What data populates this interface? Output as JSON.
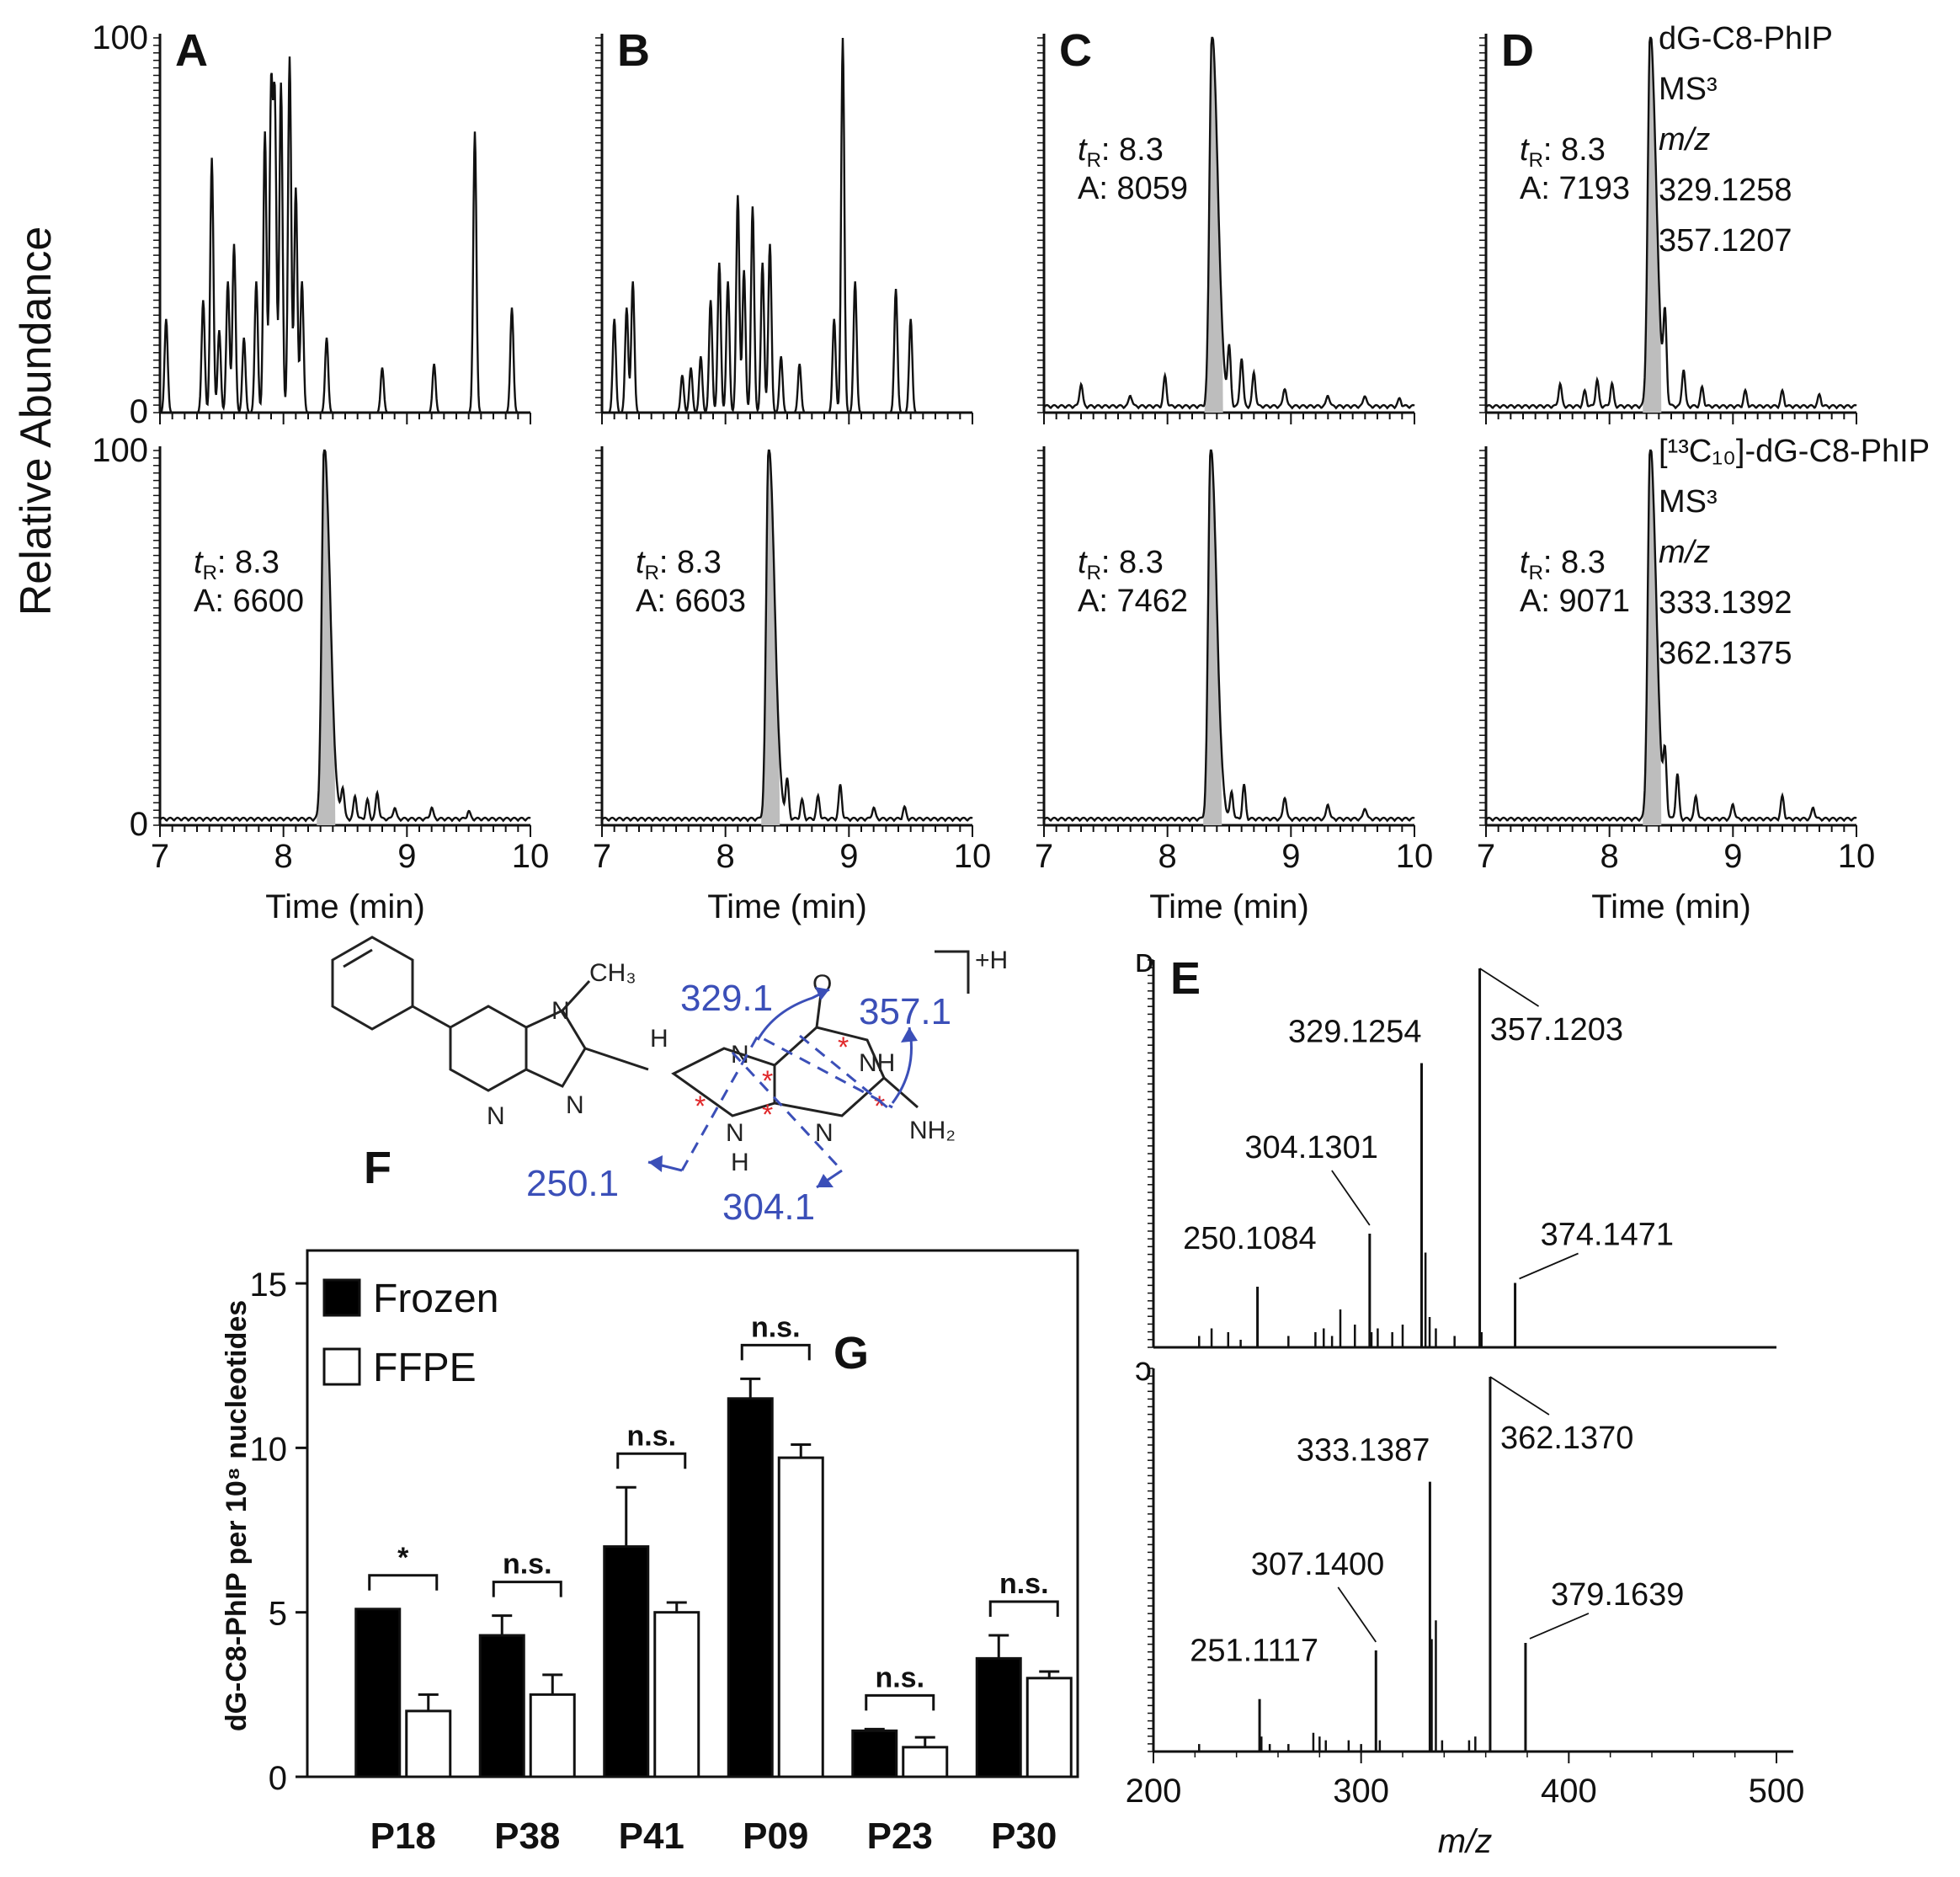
{
  "figure": {
    "y_axis_title": "Relative Abundance",
    "ion_panel_y_ticks": [
      "0",
      "100"
    ]
  },
  "chart_data": [
    {
      "type": "line",
      "id": "chromatograms",
      "x_label": "Time (min)",
      "x_ticks": [
        "7",
        "8",
        "9",
        "10"
      ],
      "xlim": [
        7,
        10
      ],
      "ylim": [
        0,
        100
      ],
      "panels": [
        {
          "letter": "A",
          "top": {
            "title": [],
            "mode": "multi",
            "peaks": [
              [
                7.05,
                25
              ],
              [
                7.35,
                30
              ],
              [
                7.42,
                68
              ],
              [
                7.48,
                22
              ],
              [
                7.55,
                35
              ],
              [
                7.6,
                45
              ],
              [
                7.68,
                20
              ],
              [
                7.78,
                35
              ],
              [
                7.85,
                75
              ],
              [
                7.9,
                85
              ],
              [
                7.93,
                82
              ],
              [
                7.98,
                88
              ],
              [
                8.05,
                95
              ],
              [
                8.1,
                60
              ],
              [
                8.15,
                35
              ],
              [
                8.35,
                20
              ],
              [
                8.8,
                12
              ],
              [
                9.22,
                13
              ],
              [
                9.55,
                75
              ],
              [
                9.85,
                28
              ]
            ]
          },
          "bottom": {
            "tR": "8.3",
            "area": "6600",
            "title": [],
            "mode": "single",
            "peaks": [
              [
                8.33,
                100
              ],
              [
                8.48,
                8
              ],
              [
                8.58,
                6
              ],
              [
                8.68,
                5
              ],
              [
                8.76,
                7
              ],
              [
                8.9,
                3
              ],
              [
                9.2,
                3
              ],
              [
                9.5,
                2
              ]
            ]
          }
        },
        {
          "letter": "B",
          "top": {
            "title": [],
            "mode": "multi",
            "peaks": [
              [
                7.1,
                25
              ],
              [
                7.2,
                28
              ],
              [
                7.25,
                35
              ],
              [
                7.65,
                10
              ],
              [
                7.72,
                12
              ],
              [
                7.8,
                15
              ],
              [
                7.88,
                30
              ],
              [
                7.95,
                40
              ],
              [
                8.02,
                35
              ],
              [
                8.1,
                58
              ],
              [
                8.15,
                38
              ],
              [
                8.22,
                55
              ],
              [
                8.3,
                40
              ],
              [
                8.36,
                45
              ],
              [
                8.45,
                15
              ],
              [
                8.6,
                13
              ],
              [
                8.88,
                25
              ],
              [
                8.95,
                100
              ],
              [
                9.05,
                35
              ],
              [
                9.38,
                33
              ],
              [
                9.5,
                25
              ]
            ]
          },
          "bottom": {
            "tR": "8.3",
            "area": "6603",
            "title": [],
            "mode": "single",
            "peaks": [
              [
                8.35,
                100
              ],
              [
                8.5,
                10
              ],
              [
                8.62,
                5
              ],
              [
                8.75,
                6
              ],
              [
                8.93,
                9
              ],
              [
                9.2,
                3
              ],
              [
                9.45,
                3
              ]
            ]
          }
        },
        {
          "letter": "C",
          "top": {
            "title": [],
            "mode": "single",
            "peaks": [
              [
                7.3,
                6
              ],
              [
                7.7,
                3
              ],
              [
                7.98,
                8
              ],
              [
                8.36,
                100
              ],
              [
                8.5,
                15
              ],
              [
                8.6,
                13
              ],
              [
                8.7,
                9
              ],
              [
                8.95,
                5
              ],
              [
                9.3,
                3
              ],
              [
                9.6,
                3
              ],
              [
                9.88,
                2
              ]
            ]
          },
          "bottom": {
            "tR": "8.3",
            "area": "7462",
            "title": [],
            "mode": "single",
            "peaks": [
              [
                8.35,
                100
              ],
              [
                8.52,
                7
              ],
              [
                8.62,
                9
              ],
              [
                8.95,
                6
              ],
              [
                9.3,
                4
              ],
              [
                9.6,
                3
              ]
            ]
          }
        },
        {
          "letter": "D",
          "top": {
            "title": [
              "dG-C8-PhIP",
              "MS³",
              "m/z",
              "329.1258",
              "357.1207"
            ],
            "mode": "single",
            "peaks": [
              [
                7.6,
                6
              ],
              [
                7.8,
                4
              ],
              [
                7.9,
                7
              ],
              [
                8.02,
                6
              ],
              [
                8.33,
                100
              ],
              [
                8.45,
                22
              ],
              [
                8.6,
                10
              ],
              [
                8.75,
                5
              ],
              [
                9.1,
                4
              ],
              [
                9.4,
                4
              ],
              [
                9.7,
                3
              ]
            ]
          },
          "bottom": {
            "tR": "8.3",
            "area": "9071",
            "title": [
              "[¹³C₁₀]-dG-C8-PhIP",
              "MS³",
              "m/z",
              "333.1392",
              "362.1375"
            ],
            "mode": "single",
            "peaks": [
              [
                8.33,
                100
              ],
              [
                8.45,
                15
              ],
              [
                8.55,
                12
              ],
              [
                8.7,
                6
              ],
              [
                9.0,
                4
              ],
              [
                9.4,
                6
              ],
              [
                9.65,
                3
              ]
            ]
          }
        }
      ],
      "top_ann": {
        "C": {
          "tR": "8.3",
          "area": "8059"
        },
        "D": {
          "tR": "8.3",
          "area": "7193"
        }
      }
    },
    {
      "type": "bar",
      "id": "ms3-spectra",
      "panel_letter": "E",
      "x_label": "m/z",
      "x_ticks": [
        "200",
        "300",
        "400",
        "500"
      ],
      "xlim": [
        200,
        500
      ],
      "ylim": [
        0,
        100
      ],
      "series": [
        {
          "name": "dG-C8-PhIP",
          "top_label": "ᴅ",
          "labeled_peaks": [
            {
              "mz": 250.1084,
              "label": "250.1084",
              "y": 16
            },
            {
              "mz": 304.1301,
              "label": "304.1301",
              "y": 30
            },
            {
              "mz": 329.1254,
              "label": "329.1254",
              "y": 75
            },
            {
              "mz": 357.1203,
              "label": "357.1203",
              "y": 100
            },
            {
              "mz": 374.1471,
              "label": "374.1471",
              "y": 17
            }
          ],
          "minor_peaks": [
            [
              222,
              3
            ],
            [
              228,
              5
            ],
            [
              236,
              4
            ],
            [
              242,
              2
            ],
            [
              265,
              3
            ],
            [
              278,
              4
            ],
            [
              282,
              5
            ],
            [
              286,
              3
            ],
            [
              290,
              10
            ],
            [
              297,
              6
            ],
            [
              305,
              4
            ],
            [
              308,
              5
            ],
            [
              315,
              4
            ],
            [
              320,
              6
            ],
            [
              331,
              25
            ],
            [
              333,
              8
            ],
            [
              336,
              5
            ],
            [
              345,
              3
            ],
            [
              358,
              4
            ]
          ]
        },
        {
          "name": "[13C10]-dG-C8-PhIP",
          "top_label": "ɔ",
          "labeled_peaks": [
            {
              "mz": 251.1117,
              "label": "251.1117",
              "y": 14
            },
            {
              "mz": 307.14,
              "label": "307.1400",
              "y": 27
            },
            {
              "mz": 333.1387,
              "label": "333.1387",
              "y": 72
            },
            {
              "mz": 362.137,
              "label": "362.1370",
              "y": 100
            },
            {
              "mz": 379.1639,
              "label": "379.1639",
              "y": 29
            }
          ],
          "minor_peaks": [
            [
              222,
              2
            ],
            [
              252,
              4
            ],
            [
              256,
              2
            ],
            [
              265,
              2
            ],
            [
              277,
              5
            ],
            [
              280,
              4
            ],
            [
              283,
              3
            ],
            [
              294,
              3
            ],
            [
              300,
              2
            ],
            [
              309,
              3
            ],
            [
              334,
              30
            ],
            [
              336,
              35
            ],
            [
              339,
              3
            ],
            [
              352,
              3
            ],
            [
              355,
              4
            ]
          ]
        }
      ]
    },
    {
      "type": "bar",
      "id": "adduct-levels",
      "panel_letter": "G",
      "y_label": "dG-C8-PhIP per 10⁸ nucleotides",
      "y_ticks": [
        "0",
        "5",
        "10",
        "15"
      ],
      "ylim": [
        0,
        16
      ],
      "categories": [
        "P18",
        "P38",
        "P41",
        "P09",
        "P23",
        "P30"
      ],
      "series": [
        {
          "name": "Frozen",
          "color": "#000000",
          "values": [
            5.1,
            4.3,
            7.0,
            11.5,
            1.4,
            3.6
          ],
          "errors": [
            0.0,
            0.6,
            1.8,
            0.6,
            0.05,
            0.7
          ]
        },
        {
          "name": "FFPE",
          "color": "#ffffff",
          "values": [
            2.0,
            2.5,
            5.0,
            9.7,
            0.9,
            3.0
          ],
          "errors": [
            0.5,
            0.6,
            0.3,
            0.4,
            0.3,
            0.2
          ]
        }
      ],
      "significance": [
        "*",
        "n.s.",
        "n.s.",
        "n.s.",
        "n.s.",
        "n.s."
      ],
      "legend_position": "top-left"
    }
  ],
  "structure": {
    "panel_letter": "F",
    "charge_label": "+H",
    "methyl_label": "CH₃",
    "fragments": [
      "329.1",
      "357.1",
      "250.1",
      "304.1"
    ],
    "atoms": [
      "N",
      "N",
      "N",
      "H",
      "N",
      "N",
      "O",
      "NH",
      "N",
      "N",
      "H",
      "NH₂"
    ],
    "label_mark": "*"
  }
}
